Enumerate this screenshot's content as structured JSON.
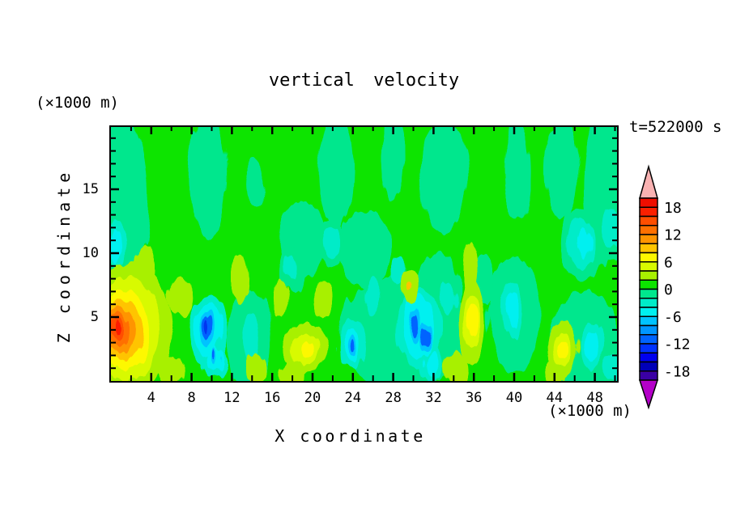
{
  "title": "vertical velocity",
  "time_label": "t=522000 s",
  "axes": {
    "x": {
      "label": "X coordinate",
      "unit": "(×1000 m)",
      "ticks": [
        4,
        8,
        12,
        16,
        20,
        24,
        28,
        32,
        36,
        40,
        44,
        48
      ],
      "minor_ticks": [
        2,
        6,
        10,
        14,
        18,
        22,
        26,
        30,
        34,
        38,
        42,
        46,
        50
      ],
      "range": [
        0,
        50.2
      ]
    },
    "y": {
      "label": "Z coordinate",
      "unit": "(×1000 m)",
      "ticks": [
        5,
        10,
        15
      ],
      "minor_ticks": [
        1,
        2,
        3,
        4,
        6,
        7,
        8,
        9,
        11,
        12,
        13,
        14,
        16,
        17,
        18,
        19
      ],
      "range": [
        0,
        19.9
      ]
    }
  },
  "colorbar": {
    "labels": [
      "18",
      "12",
      "6",
      "0",
      "-6",
      "-12",
      "-18"
    ],
    "interval": 2,
    "max": 20,
    "min": -20,
    "arrow_top_color": "#f9b2b2",
    "arrow_bottom_color": "#b400c8",
    "band_colors": [
      "#ef0e00",
      "#fb2000",
      "#ff4e00",
      "#ff7000",
      "#ff9400",
      "#ffc400",
      "#fdf800",
      "#d8fa00",
      "#a8f000",
      "#0ce400",
      "#00e78d",
      "#00ecc8",
      "#00f0f0",
      "#00c3ff",
      "#0096ff",
      "#0064ff",
      "#0032ff",
      "#0000ee",
      "#0000b8",
      "#3a00a4"
    ]
  },
  "chart_data": {
    "type": "contour",
    "title": "vertical velocity",
    "xlabel": "X coordinate (×1000 m)",
    "ylabel": "Z coordinate (×1000 m)",
    "time": "t=522000 s",
    "x_ticks": [
      4,
      8,
      12,
      16,
      20,
      24,
      28,
      32,
      36,
      40,
      44,
      48
    ],
    "y_ticks": [
      5,
      10,
      15
    ],
    "x_range": [
      0,
      50.2
    ],
    "y_range": [
      0,
      19.9
    ],
    "contour_interval": 2,
    "levels_range": [
      -20,
      20
    ],
    "colorbar_labels": [
      18,
      12,
      6,
      0,
      -6,
      -12,
      -18
    ],
    "legend_position": "right",
    "grid": false,
    "features": [
      {
        "x": 1.0,
        "z": 4.0,
        "value": 16,
        "note": "strongest updraft, orange-red core ringed yellow"
      },
      {
        "x": 7.0,
        "z": 6.6,
        "value": 3,
        "note": "chartreuse patch"
      },
      {
        "x": 19.5,
        "z": 2.5,
        "value": 7,
        "note": "yellow updraft patch"
      },
      {
        "x": 29.7,
        "z": 7.4,
        "value": 8,
        "note": "small gold-centered patch"
      },
      {
        "x": 35.8,
        "z": 4.6,
        "value": 7,
        "note": "yellow updraft patch"
      },
      {
        "x": 44.8,
        "z": 2.5,
        "value": 7,
        "note": "yellow updraft patch"
      },
      {
        "x": 9.5,
        "z": 4.3,
        "value": -13,
        "note": "strongest downdraft, dark blue core"
      },
      {
        "x": 10.2,
        "z": 1.7,
        "value": -9,
        "note": "blue downdraft spot"
      },
      {
        "x": 24.0,
        "z": 2.6,
        "value": -10,
        "note": "blue downdraft"
      },
      {
        "x": 30.2,
        "z": 4.3,
        "value": -10,
        "note": "paired blue downdraft streaks"
      },
      {
        "x": 47.7,
        "z": 2.8,
        "value": -5,
        "note": "cyan downdraft oval"
      },
      {
        "x": 25.0,
        "z": 15.0,
        "value": 0,
        "note": "upper half near zero: alternating ±2 green bands"
      }
    ],
    "palette": {
      "gr": "#0ce400",
      "sp": "#00e78d",
      "tq": "#00ecc8",
      "cy": "#00f0f0",
      "lb": "#00c3ff",
      "bl": "#0064ff",
      "db": "#0034f0",
      "ch": "#a8f000",
      "yg": "#d8fa00",
      "ye": "#fdf800",
      "go": "#ffc400",
      "am": "#ff9400",
      "or": "#ff7000",
      "do": "#ff4e00",
      "ro": "#fb1e00"
    },
    "blobs": [
      [
        1.0,
        14.0,
        2.6,
        7.0,
        "sp"
      ],
      [
        9.6,
        16.0,
        1.9,
        5.0,
        "sp"
      ],
      [
        14.4,
        15.5,
        0.9,
        2.0,
        "sp"
      ],
      [
        22.4,
        16.5,
        1.7,
        4.5,
        "sp"
      ],
      [
        27.9,
        17.5,
        1.1,
        3.4,
        "sp"
      ],
      [
        33.0,
        16.0,
        2.3,
        4.5,
        "sp"
      ],
      [
        40.2,
        16.5,
        1.3,
        4.0,
        "sp"
      ],
      [
        44.8,
        16.5,
        1.6,
        4.0,
        "sp"
      ],
      [
        48.9,
        15.0,
        2.0,
        6.0,
        "sp"
      ],
      [
        19.0,
        11.0,
        2.3,
        3.0,
        "sp"
      ],
      [
        25.2,
        10.3,
        2.6,
        3.0,
        "sp"
      ],
      [
        32.4,
        7.2,
        2.2,
        2.8,
        "sp"
      ],
      [
        29.0,
        3.8,
        6.5,
        4.5,
        "sp"
      ],
      [
        13.7,
        3.2,
        2.2,
        4.0,
        "sp"
      ],
      [
        40.0,
        5.2,
        2.6,
        4.5,
        "sp"
      ],
      [
        47.0,
        3.0,
        3.6,
        4.0,
        "sp"
      ],
      [
        46.8,
        10.7,
        2.2,
        2.8,
        "sp"
      ],
      [
        49.5,
        11.8,
        1.4,
        2.4,
        "sp"
      ],
      [
        0.5,
        10.5,
        1.2,
        2.6,
        "sp"
      ],
      [
        18.0,
        8.8,
        1.4,
        1.8,
        "sp"
      ],
      [
        36.9,
        8.0,
        1.2,
        2.0,
        "sp"
      ],
      [
        49.6,
        1.2,
        1.6,
        1.6,
        "sp"
      ],
      [
        21.9,
        10.8,
        1.3,
        1.9,
        "sp"
      ],
      [
        9.6,
        3.9,
        1.9,
        2.7,
        "tq"
      ],
      [
        10.3,
        1.5,
        1.2,
        1.3,
        "tq"
      ],
      [
        24.0,
        2.8,
        1.5,
        2.0,
        "tq"
      ],
      [
        30.6,
        4.0,
        2.3,
        3.1,
        "tq"
      ],
      [
        31.9,
        1.4,
        1.2,
        1.4,
        "tq"
      ],
      [
        47.7,
        2.8,
        1.3,
        1.8,
        "tq"
      ],
      [
        40.0,
        5.5,
        1.1,
        2.3,
        "tq"
      ],
      [
        0.5,
        10.6,
        0.7,
        1.9,
        "tq"
      ],
      [
        13.9,
        3.4,
        0.9,
        2.0,
        "tq"
      ],
      [
        25.9,
        6.6,
        0.9,
        1.5,
        "tq"
      ],
      [
        21.9,
        10.9,
        0.8,
        1.3,
        "tq"
      ],
      [
        46.6,
        10.8,
        1.3,
        2.0,
        "tq"
      ],
      [
        49.8,
        0.9,
        1.0,
        1.0,
        "tq"
      ],
      [
        28.6,
        8.6,
        0.7,
        1.1,
        "tq"
      ],
      [
        33.5,
        6.4,
        0.8,
        1.3,
        "tq"
      ],
      [
        17.9,
        8.9,
        0.7,
        1.0,
        "tq"
      ],
      [
        49.6,
        12.0,
        0.8,
        1.6,
        "tq"
      ],
      [
        9.6,
        4.0,
        1.3,
        2.0,
        "cy"
      ],
      [
        10.3,
        1.6,
        0.8,
        1.0,
        "cy"
      ],
      [
        24.0,
        2.7,
        1.0,
        1.4,
        "cy"
      ],
      [
        30.4,
        4.2,
        1.6,
        2.5,
        "cy"
      ],
      [
        31.9,
        1.4,
        0.7,
        0.9,
        "cy"
      ],
      [
        47.7,
        2.8,
        0.8,
        1.1,
        "cy"
      ],
      [
        40.0,
        5.6,
        0.6,
        1.5,
        "cy"
      ],
      [
        46.9,
        10.9,
        0.6,
        1.2,
        "cy"
      ],
      [
        0.4,
        10.4,
        0.4,
        1.3,
        "cy"
      ],
      [
        9.55,
        4.15,
        0.8,
        1.3,
        "lb"
      ],
      [
        10.25,
        1.7,
        0.5,
        0.65,
        "lb"
      ],
      [
        24.0,
        2.65,
        0.6,
        0.9,
        "lb"
      ],
      [
        30.2,
        4.3,
        0.6,
        1.4,
        "lb"
      ],
      [
        31.2,
        3.4,
        0.5,
        1.0,
        "lb"
      ],
      [
        9.5,
        4.3,
        0.5,
        0.85,
        "bl"
      ],
      [
        24.0,
        2.6,
        0.33,
        0.55,
        "bl"
      ],
      [
        30.15,
        4.35,
        0.32,
        0.95,
        "bl"
      ],
      [
        31.2,
        3.4,
        0.27,
        0.6,
        "bl"
      ],
      [
        10.2,
        1.8,
        0.27,
        0.4,
        "bl"
      ],
      [
        9.5,
        4.4,
        0.26,
        0.5,
        "db"
      ],
      [
        1.7,
        4.2,
        4.4,
        5.0,
        "ch"
      ],
      [
        3.3,
        8.7,
        1.0,
        1.8,
        "ch"
      ],
      [
        7.0,
        6.6,
        1.3,
        1.6,
        "ch"
      ],
      [
        19.3,
        2.6,
        2.4,
        1.9,
        "ch"
      ],
      [
        12.7,
        8.0,
        0.8,
        1.9,
        "ch"
      ],
      [
        16.7,
        6.5,
        0.8,
        1.6,
        "ch"
      ],
      [
        21.0,
        6.4,
        0.9,
        1.4,
        "ch"
      ],
      [
        14.4,
        0.9,
        1.0,
        1.2,
        "ch"
      ],
      [
        18.0,
        0.6,
        1.3,
        1.0,
        "ch"
      ],
      [
        29.7,
        7.4,
        0.8,
        1.3,
        "ch"
      ],
      [
        35.8,
        4.5,
        1.5,
        3.2,
        "ch"
      ],
      [
        35.6,
        8.8,
        0.7,
        2.2,
        "ch"
      ],
      [
        34.2,
        1.0,
        1.1,
        1.3,
        "ch"
      ],
      [
        44.8,
        2.6,
        1.5,
        2.1,
        "ch"
      ],
      [
        43.9,
        0.6,
        1.0,
        1.0,
        "ch"
      ],
      [
        5.9,
        0.8,
        1.2,
        1.2,
        "ch"
      ],
      [
        1.5,
        4.1,
        3.4,
        4.1,
        "yg"
      ],
      [
        19.4,
        2.5,
        1.5,
        1.2,
        "yg"
      ],
      [
        35.8,
        4.6,
        0.9,
        2.0,
        "yg"
      ],
      [
        44.8,
        2.5,
        0.9,
        1.2,
        "yg"
      ],
      [
        1.2,
        4.0,
        2.7,
        3.2,
        "ye"
      ],
      [
        19.5,
        2.5,
        0.85,
        0.65,
        "ye"
      ],
      [
        35.9,
        4.7,
        0.5,
        1.25,
        "ye"
      ],
      [
        44.9,
        2.45,
        0.45,
        0.6,
        "ye"
      ],
      [
        1.0,
        4.0,
        2.1,
        2.5,
        "go"
      ],
      [
        29.6,
        7.4,
        0.22,
        0.35,
        "go"
      ],
      [
        0.85,
        4.0,
        1.55,
        1.95,
        "am"
      ],
      [
        0.75,
        4.05,
        1.15,
        1.45,
        "or"
      ],
      [
        0.68,
        4.1,
        0.8,
        1.0,
        "do"
      ],
      [
        0.62,
        4.15,
        0.42,
        0.6,
        "ro"
      ]
    ]
  }
}
